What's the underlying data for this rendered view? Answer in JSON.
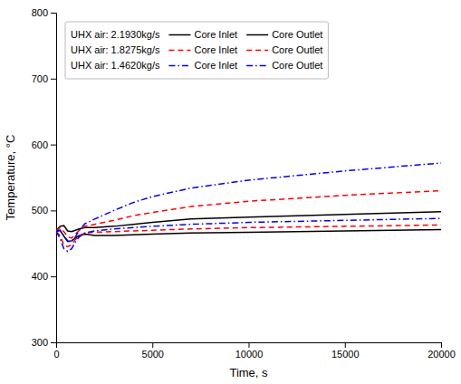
{
  "chart_data": {
    "type": "line",
    "xlabel": "Time, s",
    "ylabel": "Temperature, °C",
    "x": [
      0,
      200,
      400,
      600,
      800,
      1000,
      1200,
      1500,
      2000,
      3000,
      4000,
      5000,
      7000,
      10000,
      15000,
      20000
    ],
    "series": [
      {
        "name": "Core Inlet",
        "group": "UHX air: 2.1930kg/s",
        "color": "black",
        "line_style": "solid",
        "values": [
          468,
          470,
          461,
          453,
          454,
          458,
          462,
          464,
          462,
          462,
          463,
          464,
          466,
          467,
          469,
          471
        ]
      },
      {
        "name": "Core Outlet",
        "group": "UHX air: 2.1930kg/s",
        "color": "black",
        "line_style": "solid",
        "values": [
          469,
          476,
          477,
          469,
          468,
          470,
          472,
          474,
          474,
          476,
          479,
          482,
          487,
          490,
          494,
          498
        ]
      },
      {
        "name": "Core Inlet",
        "group": "UHX air: 1.8275kg/s",
        "color": "red",
        "line_style": "dashed",
        "values": [
          468,
          462,
          448,
          445,
          448,
          456,
          462,
          466,
          467,
          468,
          469,
          470,
          472,
          474,
          476,
          478
        ]
      },
      {
        "name": "Core Outlet",
        "group": "UHX air: 1.8275kg/s",
        "color": "red",
        "line_style": "dashed",
        "values": [
          469,
          474,
          468,
          460,
          458,
          464,
          470,
          476,
          479,
          485,
          492,
          497,
          506,
          514,
          523,
          530
        ]
      },
      {
        "name": "Core Inlet",
        "group": "UHX air: 1.4620kg/s",
        "color": "blue",
        "line_style": "dashdot",
        "values": [
          468,
          458,
          442,
          438,
          442,
          452,
          460,
          466,
          469,
          472,
          474,
          476,
          479,
          482,
          485,
          488
        ]
      },
      {
        "name": "Core Outlet",
        "group": "UHX air: 1.4620kg/s",
        "color": "blue",
        "line_style": "dashdot",
        "values": [
          469,
          470,
          462,
          454,
          452,
          460,
          470,
          480,
          487,
          500,
          512,
          521,
          534,
          546,
          560,
          572
        ]
      }
    ],
    "xlim": [
      0,
      20000
    ],
    "ylim": [
      300,
      800
    ],
    "xticks": [
      0,
      5000,
      10000,
      15000,
      20000
    ],
    "yticks": [
      300,
      400,
      500,
      600,
      700,
      800
    ],
    "grid": false,
    "legend": "upper left"
  }
}
